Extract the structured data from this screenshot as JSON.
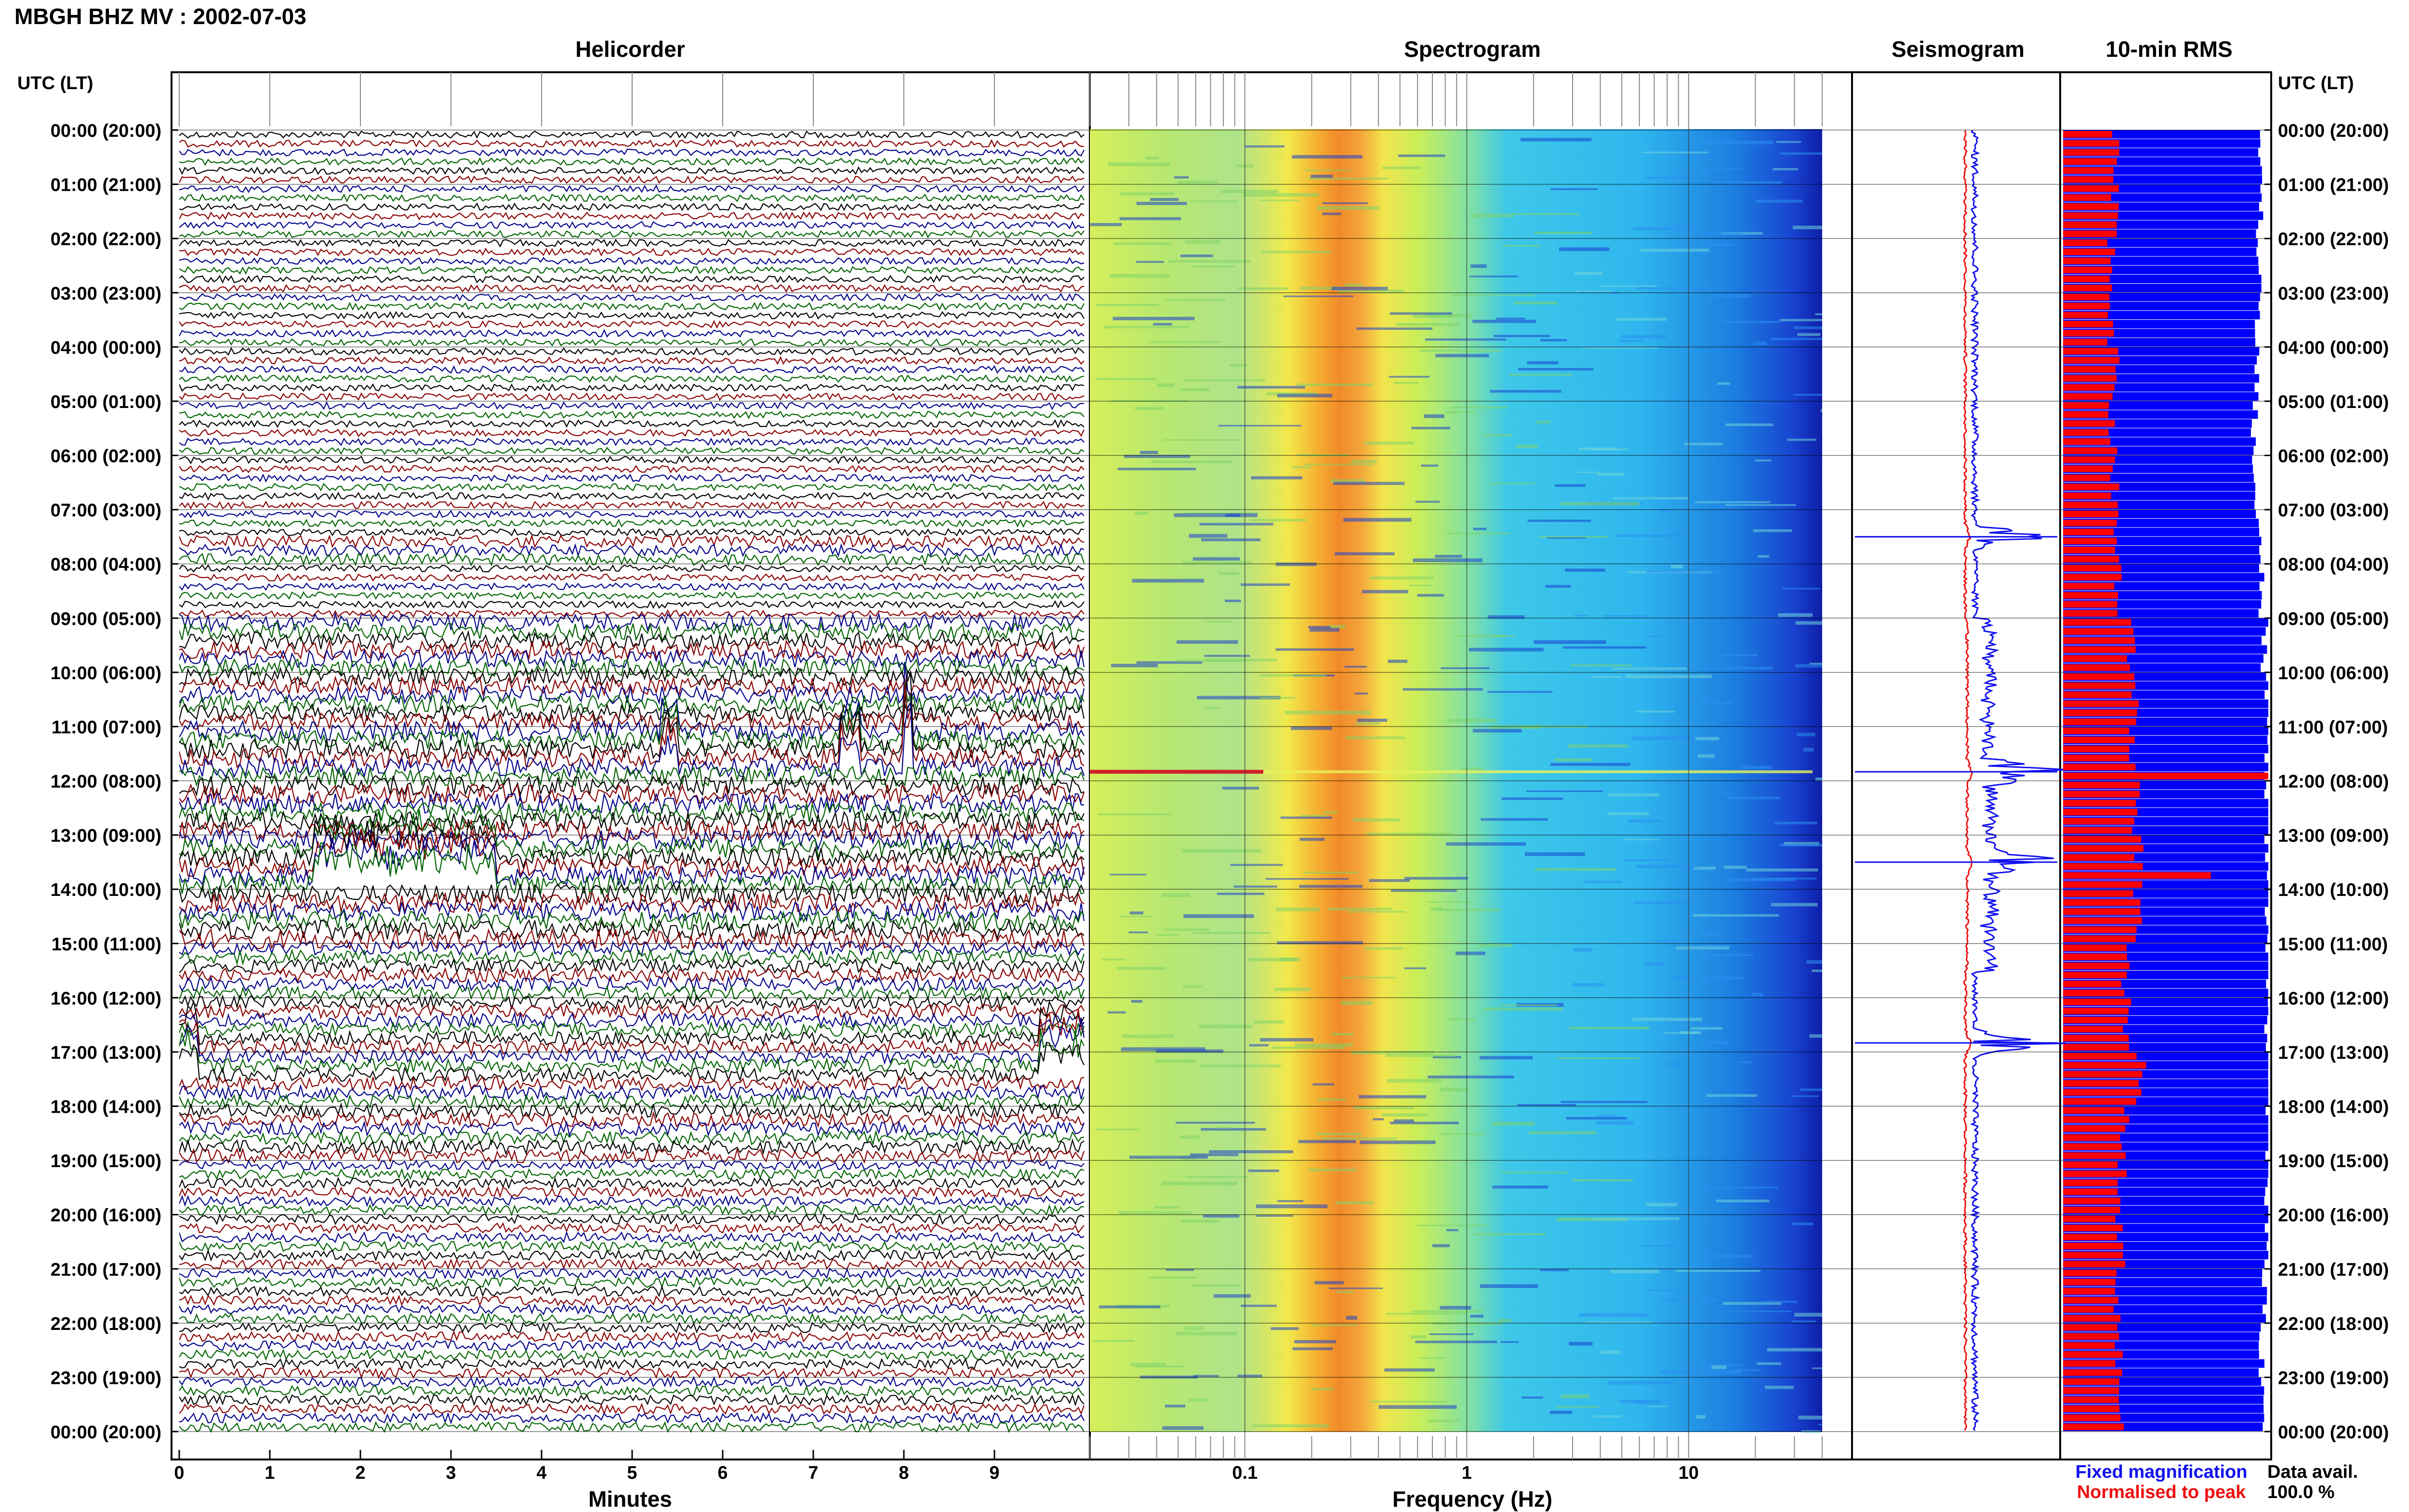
{
  "header": {
    "station_title": "MBGH BHZ MV : 2002-07-03"
  },
  "panels": {
    "helicorder": "Helicorder",
    "spectrogram": "Spectrogram",
    "seismogram": "Seismogram",
    "rms": "10-min RMS"
  },
  "axis": {
    "utc_lt_left": "UTC (LT)",
    "utc_lt_right": "UTC (LT)",
    "minutes_label": "Minutes",
    "frequency_label": "Frequency (Hz)",
    "minute_ticks": [
      "0",
      "1",
      "2",
      "3",
      "4",
      "5",
      "6",
      "7",
      "8",
      "9"
    ],
    "frequency_ticks": [
      "0.1",
      "1",
      "10"
    ]
  },
  "time_labels": [
    "00:00 (20:00)",
    "01:00 (21:00)",
    "02:00 (22:00)",
    "03:00 (23:00)",
    "04:00 (00:00)",
    "05:00 (01:00)",
    "06:00 (02:00)",
    "07:00 (03:00)",
    "08:00 (04:00)",
    "09:00 (05:00)",
    "10:00 (06:00)",
    "11:00 (07:00)",
    "12:00 (08:00)",
    "13:00 (09:00)",
    "14:00 (10:00)",
    "15:00 (11:00)",
    "16:00 (12:00)",
    "17:00 (13:00)",
    "18:00 (14:00)",
    "19:00 (15:00)",
    "20:00 (16:00)",
    "21:00 (17:00)",
    "22:00 (18:00)",
    "23:00 (19:00)",
    "00:00 (20:00)"
  ],
  "legend": {
    "fixed_magnification": "Fixed magnification",
    "normalised_to_peak": "Normalised to peak",
    "fixed_color": "#1010ee",
    "normalised_color": "#ee1010"
  },
  "data_availability": {
    "label": "Data avail.",
    "value": "100.0 %"
  },
  "colors": {
    "trace_black": "#000000",
    "trace_red": "#8b0000",
    "trace_blue": "#00008b",
    "trace_green": "#006400",
    "rms_blue": "#0000ff",
    "rms_red": "#ff0000"
  },
  "chart_data": [
    {
      "type": "line",
      "panel": "Helicorder",
      "xlabel": "Minutes",
      "xlim": [
        0,
        10
      ],
      "x_ticks": [
        0,
        1,
        2,
        3,
        4,
        5,
        6,
        7,
        8,
        9
      ],
      "rows_per_hour": 6,
      "trace_colors": [
        "black",
        "red",
        "blue",
        "green"
      ],
      "notable_events": [
        {
          "time_utc": "11:20",
          "minutes": [
            5.3,
            5.5
          ],
          "amplitude": "large"
        },
        {
          "time_utc": "11:20",
          "minutes": [
            7.3,
            7.5
          ],
          "amplitude": "large"
        },
        {
          "time_utc": "11:20",
          "minutes": [
            8.0,
            8.1
          ],
          "amplitude": "very large"
        },
        {
          "time_utc": "13:30",
          "minutes": [
            1.5,
            3.5
          ],
          "amplitude": "large"
        },
        {
          "time_utc": "17:00",
          "minutes": [
            0.0,
            0.2
          ],
          "amplitude": "large"
        },
        {
          "time_utc": "17:00",
          "minutes": [
            9.5,
            10.0
          ],
          "amplitude": "large"
        }
      ]
    },
    {
      "type": "heatmap",
      "panel": "Spectrogram",
      "xlabel": "Frequency (Hz)",
      "x_scale": "log",
      "xlim": [
        0.02,
        40
      ],
      "x_ticks": [
        0.1,
        1,
        10
      ],
      "colormap": "jet",
      "peak_band_hz": [
        0.25,
        0.45
      ],
      "notable_rows_utc": [
        "11:50"
      ]
    },
    {
      "type": "line",
      "panel": "Seismogram",
      "series": [
        {
          "name": "Fixed magnification",
          "color": "blue"
        },
        {
          "name": "Normalised to peak",
          "color": "red"
        }
      ],
      "notable_rows_utc": [
        "07:30",
        "11:50",
        "13:30",
        "16:50"
      ]
    },
    {
      "type": "bar",
      "panel": "10-min RMS",
      "orientation": "horizontal",
      "bins_per_hour": 6,
      "series": [
        {
          "name": "Fixed magnification",
          "color": "blue",
          "hourly_fraction": [
            0.97,
            0.96,
            0.95,
            0.95,
            0.94,
            0.93,
            0.93,
            0.95,
            0.97,
            0.98,
            1.0,
            1.0,
            1.0,
            1.0,
            1.0,
            1.0,
            1.0,
            1.0,
            1.0,
            1.0,
            1.0,
            0.98,
            0.97,
            0.98
          ]
        },
        {
          "name": "Normalised to peak",
          "color": "red",
          "hourly_fraction": [
            0.25,
            0.25,
            0.24,
            0.24,
            0.25,
            0.24,
            0.25,
            0.26,
            0.27,
            0.33,
            0.35,
            0.34,
            0.36,
            0.37,
            0.36,
            0.3,
            0.31,
            0.38,
            0.3,
            0.29,
            0.28,
            0.27,
            0.27,
            0.28
          ]
        }
      ],
      "peaks": [
        {
          "time_utc": "11:50",
          "fraction": 1.0
        },
        {
          "time_utc": "13:40",
          "fraction": 0.72
        }
      ]
    }
  ]
}
